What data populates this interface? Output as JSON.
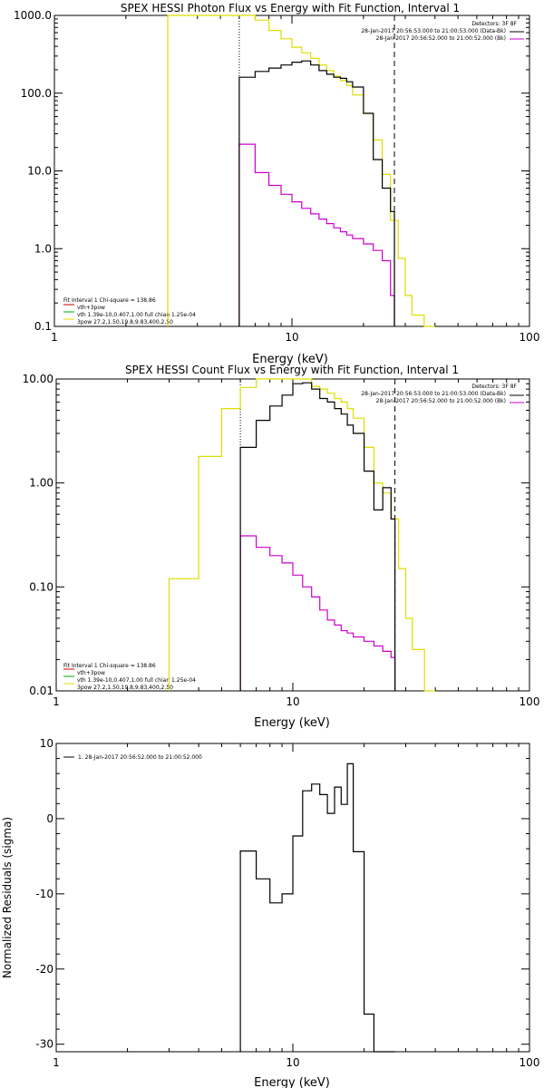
{
  "chart_data": [
    {
      "type": "line",
      "title": "SPEX HESSI Photon Flux vs Energy with Fit Function, Interval 1",
      "xlabel": "Energy (keV)",
      "ylabel": "",
      "xscale": "log",
      "yscale": "log",
      "xlim": [
        1,
        100
      ],
      "ylim": [
        0.1,
        1000
      ],
      "x_ticks": [
        1,
        10,
        100
      ],
      "x_tick_labels": [
        "1",
        "10",
        "100"
      ],
      "y_ticks": [
        0.1,
        1,
        10,
        100,
        1000
      ],
      "y_tick_labels": [
        "0.1",
        "1.0",
        "10.0",
        "100.0",
        "1000.0"
      ],
      "fit_range": [
        6,
        27
      ],
      "legend_placement": "top-right",
      "legend_right": [
        "Detectors: 3F 8F",
        "28-Jan-2017 20:56:53.000 to 21:00:53.000 (Data-Bk)",
        "28-Jan-2017 20:56:52.000 to 21:00:52.000 (Bk)"
      ],
      "legend_left": [
        "Fit Interval 1   Chi-square = 138.86",
        "vth+3pow",
        "vth 1.39e-10,0.407,1.00  full chian 1.25e-04",
        "3pow 27.2,1.50,19.8,9.83,400,2.50"
      ],
      "series": [
        {
          "name": "28-Jan-2017 20:56:53.000 to 21:00:53.000 (Data-Bk)",
          "color": "#000000",
          "edges": [
            6,
            7,
            8,
            9,
            10,
            11,
            12,
            13,
            14,
            15,
            16,
            17,
            18,
            20,
            22,
            24,
            26,
            27
          ],
          "values": [
            160,
            190,
            210,
            230,
            250,
            260,
            230,
            195,
            175,
            160,
            155,
            140,
            120,
            55,
            14,
            6,
            3
          ]
        },
        {
          "name": "28-Jan-2017 20:56:52.000 to 21:00:52.000 (Bk)",
          "color": "#cc00cc",
          "edges": [
            6,
            7,
            8,
            9,
            10,
            11,
            12,
            13,
            14,
            15,
            16,
            17,
            18,
            20,
            22,
            24,
            26,
            27
          ],
          "values": [
            22,
            9.5,
            6.5,
            5,
            4,
            3.3,
            2.8,
            2.4,
            2.1,
            1.85,
            1.65,
            1.5,
            1.35,
            1.15,
            0.95,
            0.7,
            0.25
          ]
        },
        {
          "name": "vth+3pow",
          "color": "#dddd00",
          "edges": [
            3,
            4,
            5,
            6,
            7,
            8,
            9,
            10,
            11,
            12,
            13,
            14,
            15,
            16,
            17,
            18,
            20,
            22,
            24,
            26,
            28,
            30,
            32,
            36,
            40
          ],
          "values": [
            1000,
            1000,
            1000,
            1000,
            870,
            640,
            500,
            390,
            330,
            280,
            230,
            195,
            165,
            145,
            125,
            95,
            55,
            25,
            9,
            2.3,
            0.75,
            0.25,
            0.14,
            0.1
          ]
        }
      ],
      "reference_lines": [
        {
          "x": 6,
          "style": "dotted"
        },
        {
          "x": 27,
          "style": "dashed"
        }
      ]
    },
    {
      "type": "line",
      "title": "SPEX HESSI Count Flux vs Energy with Fit Function, Interval 1",
      "xlabel": "Energy (keV)",
      "ylabel": "",
      "xscale": "log",
      "yscale": "log",
      "xlim": [
        1,
        100
      ],
      "ylim": [
        0.01,
        10
      ],
      "x_ticks": [
        1,
        10,
        100
      ],
      "x_tick_labels": [
        "1",
        "10",
        "100"
      ],
      "y_ticks": [
        0.01,
        0.1,
        1,
        10
      ],
      "y_tick_labels": [
        "0.01",
        "0.10",
        "1.00",
        "10.00"
      ],
      "fit_range": [
        6,
        27
      ],
      "legend_placement": "top-right",
      "legend_right": [
        "Detectors: 3F 8F",
        "28-Jan-2017 20:56:53.000 to 21:00:53.000 (Data-Bk)",
        "28-Jan-2017 20:56:52.000 to 21:00:52.000 (Bk)"
      ],
      "legend_left": [
        "Fit Interval 1   Chi-square = 138.86",
        "vth+3pow",
        "vth 1.39e-10,0.407,1.00  full chian 1.25e-04",
        "3pow 27.2,1.50,19.8,9.83,400,2.50"
      ],
      "series": [
        {
          "name": "28-Jan-2017 20:56:53.000 to 21:00:53.000 (Data-Bk)",
          "color": "#000000",
          "edges": [
            6,
            7,
            8,
            9,
            10,
            11,
            12,
            13,
            14,
            15,
            16,
            17,
            18,
            20,
            22,
            24,
            26,
            27
          ],
          "values": [
            2.2,
            4,
            5.5,
            7,
            9,
            9.2,
            8,
            6.5,
            6,
            5.2,
            4.6,
            3.6,
            3,
            1.3,
            0.55,
            0.9,
            0.45
          ]
        },
        {
          "name": "28-Jan-2017 20:56:52.000 to 21:00:52.000 (Bk)",
          "color": "#cc00cc",
          "edges": [
            6,
            7,
            8,
            9,
            10,
            11,
            12,
            13,
            14,
            15,
            16,
            17,
            18,
            20,
            22,
            24,
            26,
            27
          ],
          "values": [
            0.31,
            0.24,
            0.2,
            0.17,
            0.13,
            0.1,
            0.08,
            0.06,
            0.048,
            0.043,
            0.038,
            0.036,
            0.033,
            0.03,
            0.027,
            0.024,
            0.021
          ]
        },
        {
          "name": "vth+3pow",
          "color": "#dddd00",
          "edges": [
            3,
            4,
            5,
            6,
            7,
            8,
            9,
            10,
            11,
            12,
            13,
            14,
            15,
            16,
            17,
            18,
            20,
            22,
            24,
            26,
            28,
            30,
            32,
            36,
            40
          ],
          "values": [
            0.12,
            1.8,
            5.2,
            8.3,
            10,
            10,
            10,
            10,
            10,
            8.5,
            8,
            7.3,
            6.5,
            6,
            5.2,
            4.2,
            2.2,
            1,
            0.8,
            0.45,
            0.15,
            0.05,
            0.025,
            0.01
          ]
        }
      ],
      "reference_lines": [
        {
          "x": 6,
          "style": "dotted"
        },
        {
          "x": 27,
          "style": "dashed"
        }
      ]
    },
    {
      "type": "line",
      "title": "",
      "xlabel": "Energy (keV)",
      "ylabel": "Normalized Residuals (sigma)",
      "xscale": "log",
      "yscale": "linear",
      "xlim": [
        1,
        100
      ],
      "ylim": [
        -31,
        10
      ],
      "x_ticks": [
        1,
        10,
        100
      ],
      "x_tick_labels": [
        "1",
        "10",
        "100"
      ],
      "y_ticks": [
        -30,
        -20,
        -10,
        0,
        10
      ],
      "y_tick_labels": [
        "-30",
        "-20",
        "-10",
        "0",
        "10"
      ],
      "legend_placement": "top-left",
      "series": [
        {
          "name": "1. 28-Jan-2017 20:56:52.000 to 21:00:52.000",
          "color": "#000000",
          "edges": [
            6,
            7,
            8,
            9,
            10,
            11,
            12,
            13,
            14,
            15,
            16,
            17,
            18,
            20,
            22,
            24,
            26,
            27
          ],
          "values": [
            -4.3,
            -8,
            -11.2,
            -10,
            -2.3,
            3.7,
            4.6,
            3.2,
            0.7,
            4.2,
            1.9,
            7.3,
            -4.4,
            -26,
            -31,
            -31,
            -31
          ]
        }
      ]
    }
  ]
}
